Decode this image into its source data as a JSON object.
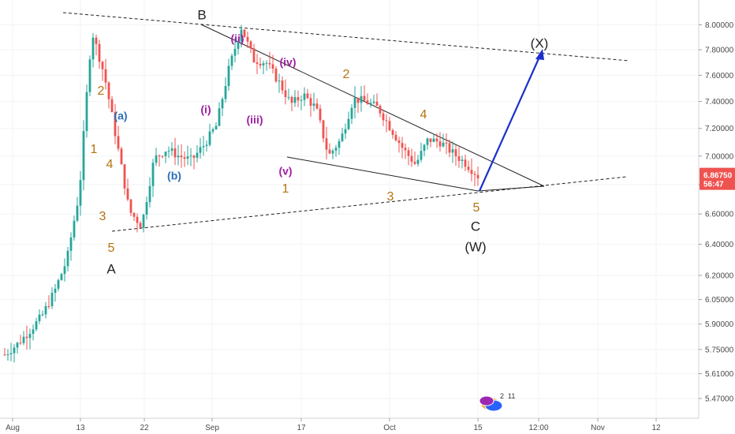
{
  "chart_data": {
    "type": "line",
    "chart_kind": "candlestick price chart with Elliott wave annotations",
    "x_tick_labels": [
      "Aug",
      "13",
      "22",
      "Sep",
      "17",
      "Oct",
      "15",
      "12:00",
      "Nov",
      "12"
    ],
    "y_axis": {
      "scale": "log",
      "ylim": [
        5.4,
        8.1
      ],
      "tick_labels": [
        "8.00000",
        "7.80000",
        "7.60000",
        "7.40000",
        "7.20000",
        "7.00000",
        "6.80000",
        "6.60000",
        "6.40000",
        "6.20000",
        "6.05000",
        "5.90000",
        "5.75000",
        "5.61000",
        "5.47000"
      ],
      "ticks": [
        8.0,
        7.8,
        7.6,
        7.4,
        7.2,
        7.0,
        6.8,
        6.6,
        6.4,
        6.2,
        6.05,
        5.9,
        5.75,
        5.61,
        5.47
      ]
    },
    "last_price": {
      "value": "6.86750",
      "countdown": "56:47",
      "color": "#ef5350"
    },
    "series": [
      {
        "values_approx": [
          5.72,
          5.78,
          5.86,
          5.95,
          6.1,
          6.3,
          6.75,
          7.95,
          7.6,
          7.1,
          6.62,
          6.52,
          6.98,
          7.05,
          7.0,
          6.97,
          7.08,
          7.22,
          7.65,
          7.98,
          7.72,
          7.7,
          7.55,
          7.38,
          7.45,
          7.35,
          7.0,
          7.12,
          7.42,
          7.4,
          7.35,
          7.2,
          7.05,
          6.94,
          7.12,
          7.1,
          7.02,
          6.95,
          6.86
        ]
      }
    ],
    "colors": {
      "up": "#26a69a",
      "down": "#ef5350",
      "projection": "#1b2fcf",
      "fib_orange": "#b5730e",
      "fib_purple": "#a020a0",
      "fib_blue": "#2a6fb5",
      "major": "#222222"
    },
    "annotations": [
      {
        "label": "B",
        "color": "major"
      },
      {
        "label": "A",
        "color": "major"
      },
      {
        "label": "C",
        "color": "major"
      },
      {
        "label": "(W)",
        "color": "major"
      },
      {
        "label": "(X)",
        "color": "major"
      },
      {
        "label": "1",
        "color": "fib_orange"
      },
      {
        "label": "2",
        "color": "fib_orange"
      },
      {
        "label": "3",
        "color": "fib_orange"
      },
      {
        "label": "4",
        "color": "fib_orange"
      },
      {
        "label": "5",
        "color": "fib_orange"
      },
      {
        "label": "(a)",
        "color": "fib_blue"
      },
      {
        "label": "(b)",
        "color": "fib_blue"
      },
      {
        "label": "(i)",
        "color": "fib_purple"
      },
      {
        "label": "(ii)",
        "color": "fib_purple"
      },
      {
        "label": "(iii)",
        "color": "fib_purple"
      },
      {
        "label": "(iv)",
        "color": "fib_purple"
      },
      {
        "label": "(v)",
        "color": "fib_purple"
      },
      {
        "label": "1",
        "color": "fib_orange"
      },
      {
        "label": "2",
        "color": "fib_orange"
      },
      {
        "label": "3",
        "color": "fib_orange"
      },
      {
        "label": "4",
        "color": "fib_orange"
      },
      {
        "label": "5",
        "color": "fib_orange"
      }
    ],
    "events_badge": {
      "icons": [
        "ellipse-icon"
      ],
      "numbers": [
        "2",
        "11"
      ]
    }
  }
}
